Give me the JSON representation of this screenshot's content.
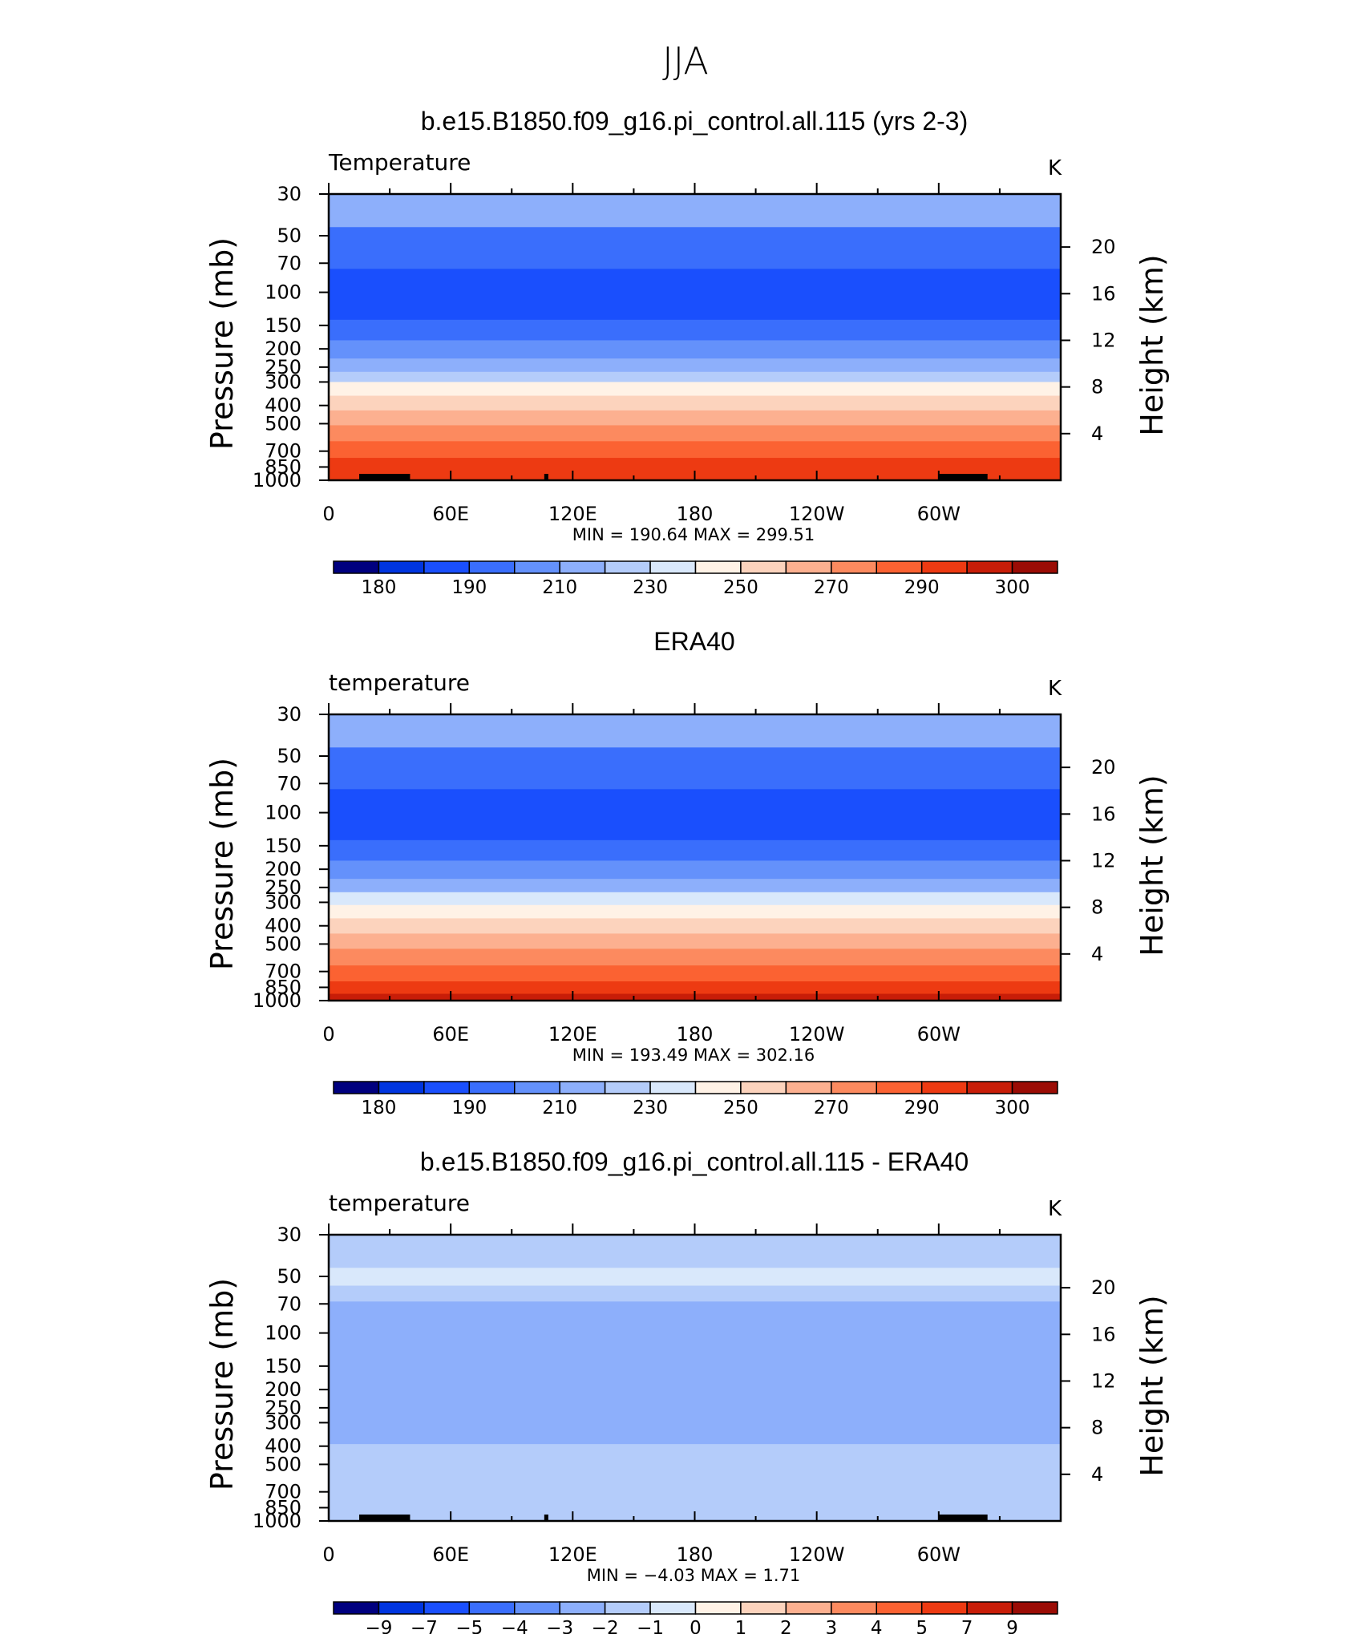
{
  "figure_title": "JJA",
  "colors": {
    "temperature_scale": [
      "#00007f",
      "#0018b6",
      "#0035e0",
      "#1a4ffd",
      "#3a6efc",
      "#6491fb",
      "#8daffb",
      "#b4ccfa",
      "#d9e8fb",
      "#fff2e6",
      "#fcd3bd",
      "#fcb090",
      "#fc8a5f",
      "#fb6232",
      "#ed3a12",
      "#c81d08",
      "#9b0c05",
      "#7a0000"
    ],
    "difference_scale": [
      "#00007f",
      "#0018b6",
      "#0035e0",
      "#1a4ffd",
      "#3a6efc",
      "#6491fb",
      "#8daffb",
      "#b4ccfa",
      "#d9e8fb",
      "#fff2e6",
      "#fcd3bd",
      "#fcb090",
      "#fc8a5f",
      "#fb6232",
      "#ed3a12",
      "#c81d08",
      "#9b0c05",
      "#7a0000"
    ],
    "topography": "#000000"
  },
  "chart_data": [
    {
      "type": "heatmap",
      "subtype": "filled-contour-zonal-cross-section",
      "title": "b.e15.B1850.f09_g16.pi_control.all.115 (yrs 2-3)",
      "left_label": "Temperature",
      "units": "K",
      "ylabel": "Pressure (mb)",
      "ylabel_right": "Height (km)",
      "x_ticks": [
        "0",
        "60E",
        "120E",
        "180",
        "120W",
        "60W"
      ],
      "x_range_deg": [
        0,
        360
      ],
      "y_ticks": [
        "30",
        "50",
        "70",
        "100",
        "150",
        "200",
        "250",
        "300",
        "400",
        "500",
        "700",
        "850",
        "1000"
      ],
      "y_range_mb": [
        30,
        1000
      ],
      "y_right_ticks": [
        "20",
        "16",
        "12",
        "8",
        "4"
      ],
      "stats_text": "MIN  =  190.64    MAX  =  299.51",
      "min": 190.64,
      "max": 299.51,
      "colorbar_ticks": [
        "180",
        "190",
        "210",
        "230",
        "250",
        "270",
        "290",
        "300"
      ],
      "profile": [
        {
          "p_top": 30,
          "p_bot": 45,
          "band": 6
        },
        {
          "p_top": 45,
          "p_bot": 75,
          "band": 4
        },
        {
          "p_top": 75,
          "p_bot": 140,
          "band": 3
        },
        {
          "p_top": 140,
          "p_bot": 180,
          "band": 4
        },
        {
          "p_top": 180,
          "p_bot": 225,
          "band": 5
        },
        {
          "p_top": 225,
          "p_bot": 265,
          "band": 6
        },
        {
          "p_top": 265,
          "p_bot": 300,
          "band": 7
        },
        {
          "p_top": 300,
          "p_bot": 355,
          "band": 9
        },
        {
          "p_top": 355,
          "p_bot": 425,
          "band": 10
        },
        {
          "p_top": 425,
          "p_bot": 510,
          "band": 11
        },
        {
          "p_top": 510,
          "p_bot": 620,
          "band": 12
        },
        {
          "p_top": 620,
          "p_bot": 760,
          "band": 13
        },
        {
          "p_top": 760,
          "p_bot": 1000,
          "band": 14
        }
      ],
      "land_masks": [
        [
          15,
          40
        ],
        [
          106,
          108
        ],
        [
          300,
          324
        ]
      ]
    },
    {
      "type": "heatmap",
      "subtype": "filled-contour-zonal-cross-section",
      "title": "ERA40",
      "left_label": "temperature",
      "units": "K",
      "ylabel": "Pressure (mb)",
      "ylabel_right": "Height (km)",
      "x_ticks": [
        "0",
        "60E",
        "120E",
        "180",
        "120W",
        "60W"
      ],
      "x_range_deg": [
        0,
        360
      ],
      "y_ticks": [
        "30",
        "50",
        "70",
        "100",
        "150",
        "200",
        "250",
        "300",
        "400",
        "500",
        "700",
        "850",
        "1000"
      ],
      "y_range_mb": [
        30,
        1000
      ],
      "y_right_ticks": [
        "20",
        "16",
        "12",
        "8",
        "4"
      ],
      "stats_text": "MIN  =  193.49    MAX  =  302.16",
      "min": 193.49,
      "max": 302.16,
      "colorbar_ticks": [
        "180",
        "190",
        "210",
        "230",
        "250",
        "270",
        "290",
        "300"
      ],
      "profile": [
        {
          "p_top": 30,
          "p_bot": 45,
          "band": 6
        },
        {
          "p_top": 45,
          "p_bot": 75,
          "band": 4
        },
        {
          "p_top": 75,
          "p_bot": 140,
          "band": 3
        },
        {
          "p_top": 140,
          "p_bot": 180,
          "band": 4
        },
        {
          "p_top": 180,
          "p_bot": 225,
          "band": 5
        },
        {
          "p_top": 225,
          "p_bot": 265,
          "band": 6
        },
        {
          "p_top": 265,
          "p_bot": 310,
          "band": 8
        },
        {
          "p_top": 310,
          "p_bot": 365,
          "band": 9
        },
        {
          "p_top": 365,
          "p_bot": 440,
          "band": 10
        },
        {
          "p_top": 440,
          "p_bot": 530,
          "band": 11
        },
        {
          "p_top": 530,
          "p_bot": 650,
          "band": 12
        },
        {
          "p_top": 650,
          "p_bot": 790,
          "band": 13
        },
        {
          "p_top": 790,
          "p_bot": 920,
          "band": 14
        },
        {
          "p_top": 920,
          "p_bot": 1000,
          "band": 15
        }
      ],
      "land_masks": []
    },
    {
      "type": "heatmap",
      "subtype": "filled-contour-zonal-cross-section",
      "title": "b.e15.B1850.f09_g16.pi_control.all.115 - ERA40",
      "left_label": "temperature",
      "units": "K",
      "ylabel": "Pressure (mb)",
      "ylabel_right": "Height (km)",
      "x_ticks": [
        "0",
        "60E",
        "120E",
        "180",
        "120W",
        "60W"
      ],
      "x_range_deg": [
        0,
        360
      ],
      "y_ticks": [
        "30",
        "50",
        "70",
        "100",
        "150",
        "200",
        "250",
        "300",
        "400",
        "500",
        "700",
        "850",
        "1000"
      ],
      "y_range_mb": [
        30,
        1000
      ],
      "y_right_ticks": [
        "20",
        "16",
        "12",
        "8",
        "4"
      ],
      "stats_text": "MIN  =   −4.03    MAX  =     1.71",
      "min": -4.03,
      "max": 1.71,
      "colorbar_ticks": [
        "−9",
        "−7",
        "−5",
        "−4",
        "−3",
        "−2",
        "−1",
        "0",
        "1",
        "2",
        "3",
        "4",
        "5",
        "7",
        "9"
      ],
      "profile": [
        {
          "p_top": 30,
          "p_bot": 45,
          "band": 7
        },
        {
          "p_top": 45,
          "p_bot": 56,
          "band": 8
        },
        {
          "p_top": 56,
          "p_bot": 68,
          "band": 7
        },
        {
          "p_top": 68,
          "p_bot": 390,
          "band": 6
        },
        {
          "p_top": 390,
          "p_bot": 1000,
          "band": 7
        }
      ],
      "land_masks": [
        [
          15,
          40
        ],
        [
          106,
          108
        ],
        [
          300,
          324
        ]
      ]
    }
  ]
}
